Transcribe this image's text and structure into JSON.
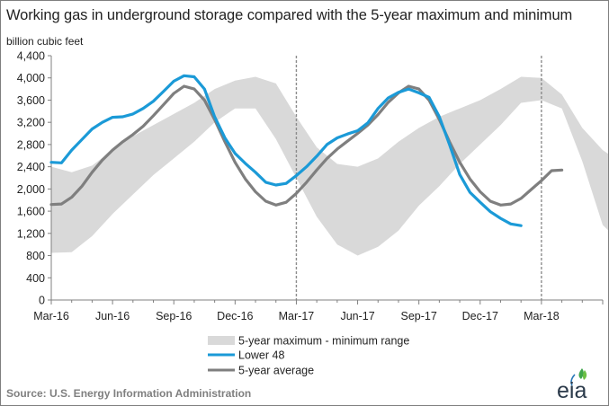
{
  "chart_data": {
    "type": "line",
    "title": "Working gas in underground  storage compared with the 5-year maximum and minimum",
    "ylabel": "billion cubic feet",
    "xlabel": "",
    "ylim": [
      0,
      4400
    ],
    "yticks": [
      "4,400",
      "4,000",
      "3,600",
      "3,200",
      "2,800",
      "2,400",
      "2,000",
      "1,600",
      "1,200",
      "800",
      "400",
      "0"
    ],
    "xticks": [
      "Mar-16",
      "Jun-16",
      "Sep-16",
      "Dec-16",
      "Mar-17",
      "Jun-17",
      "Sep-17",
      "Dec-17",
      "Mar-18"
    ],
    "x_month_range": [
      "Mar-16",
      "Jun-18"
    ],
    "vertical_markers": [
      "Mar-17",
      "Mar-18"
    ],
    "grid": false,
    "legend_position": "bottom-center",
    "series": [
      {
        "name": "5-year maximum - minimum range",
        "kind": "band",
        "color": "#d9d9d9",
        "upper": [
          2400,
          2300,
          2420,
          2700,
          2950,
          3150,
          3350,
          3550,
          3800,
          3950,
          4020,
          3900,
          3300,
          2750,
          2450,
          2400,
          2550,
          2850,
          3100,
          3300,
          3450,
          3600,
          3800,
          4020,
          4000,
          3700,
          3100,
          2700,
          2450,
          2460,
          2700,
          2950
        ],
        "lower": [
          850,
          860,
          1150,
          1550,
          1900,
          2250,
          2550,
          2850,
          3200,
          3450,
          3450,
          2900,
          2200,
          1500,
          1000,
          800,
          960,
          1250,
          1700,
          2050,
          2450,
          2800,
          3150,
          3550,
          3600,
          3450,
          2500,
          1350,
          1000,
          830,
          1050,
          1550
        ]
      },
      {
        "name": "Lower 48",
        "kind": "line",
        "color": "#1b9ad7",
        "points": [
          [
            0,
            2480
          ],
          [
            0.5,
            2470
          ],
          [
            1,
            2700
          ],
          [
            1.5,
            2890
          ],
          [
            2,
            3080
          ],
          [
            2.5,
            3200
          ],
          [
            3,
            3290
          ],
          [
            3.5,
            3300
          ],
          [
            4,
            3350
          ],
          [
            4.5,
            3450
          ],
          [
            5,
            3580
          ],
          [
            5.5,
            3760
          ],
          [
            6,
            3940
          ],
          [
            6.5,
            4040
          ],
          [
            7,
            4020
          ],
          [
            7.5,
            3800
          ],
          [
            8,
            3300
          ],
          [
            8.5,
            2920
          ],
          [
            9,
            2640
          ],
          [
            9.5,
            2460
          ],
          [
            10,
            2300
          ],
          [
            10.5,
            2120
          ],
          [
            11,
            2070
          ],
          [
            11.5,
            2100
          ],
          [
            12,
            2240
          ],
          [
            12.5,
            2400
          ],
          [
            13,
            2590
          ],
          [
            13.5,
            2800
          ],
          [
            14,
            2920
          ],
          [
            14.5,
            2990
          ],
          [
            15,
            3050
          ],
          [
            15.5,
            3190
          ],
          [
            16,
            3450
          ],
          [
            16.5,
            3640
          ],
          [
            17,
            3740
          ],
          [
            17.5,
            3800
          ],
          [
            18,
            3730
          ],
          [
            18.5,
            3650
          ],
          [
            19,
            3300
          ],
          [
            19.5,
            2800
          ],
          [
            20,
            2260
          ],
          [
            20.5,
            1940
          ],
          [
            21,
            1760
          ],
          [
            21.5,
            1590
          ],
          [
            22,
            1470
          ],
          [
            22.5,
            1370
          ],
          [
            23,
            1340
          ]
        ]
      },
      {
        "name": "5-year average",
        "kind": "line",
        "color": "#7f7f7f",
        "points": [
          [
            0,
            1720
          ],
          [
            0.5,
            1730
          ],
          [
            1,
            1850
          ],
          [
            1.5,
            2050
          ],
          [
            2,
            2300
          ],
          [
            2.5,
            2520
          ],
          [
            3,
            2700
          ],
          [
            3.5,
            2850
          ],
          [
            4,
            2980
          ],
          [
            4.5,
            3130
          ],
          [
            5,
            3320
          ],
          [
            5.5,
            3520
          ],
          [
            6,
            3720
          ],
          [
            6.5,
            3850
          ],
          [
            7,
            3800
          ],
          [
            7.5,
            3600
          ],
          [
            8,
            3250
          ],
          [
            8.5,
            2850
          ],
          [
            9,
            2480
          ],
          [
            9.5,
            2180
          ],
          [
            10,
            1950
          ],
          [
            10.5,
            1780
          ],
          [
            11,
            1710
          ],
          [
            11.5,
            1760
          ],
          [
            12,
            1920
          ],
          [
            12.5,
            2120
          ],
          [
            13,
            2340
          ],
          [
            13.5,
            2550
          ],
          [
            14,
            2720
          ],
          [
            14.5,
            2860
          ],
          [
            15,
            3000
          ],
          [
            15.5,
            3150
          ],
          [
            16,
            3340
          ],
          [
            16.5,
            3560
          ],
          [
            17,
            3730
          ],
          [
            17.5,
            3850
          ],
          [
            18,
            3800
          ],
          [
            18.5,
            3600
          ],
          [
            19,
            3250
          ],
          [
            19.5,
            2850
          ],
          [
            20,
            2480
          ],
          [
            20.5,
            2180
          ],
          [
            21,
            1950
          ],
          [
            21.5,
            1780
          ],
          [
            22,
            1710
          ],
          [
            22.5,
            1730
          ],
          [
            23,
            1830
          ],
          [
            23.5,
            1990
          ],
          [
            24,
            2150
          ],
          [
            24.5,
            2330
          ],
          [
            25,
            2340
          ]
        ]
      }
    ]
  },
  "footer": {
    "source": "Source:  U.S. Energy Information Administration",
    "logo_text": "eia"
  },
  "colors": {
    "lower48": "#1b9ad7",
    "average": "#7f7f7f",
    "band": "#d9d9d9",
    "marker": "#8c8c8c",
    "logo_leaves": "#3fa64a"
  }
}
